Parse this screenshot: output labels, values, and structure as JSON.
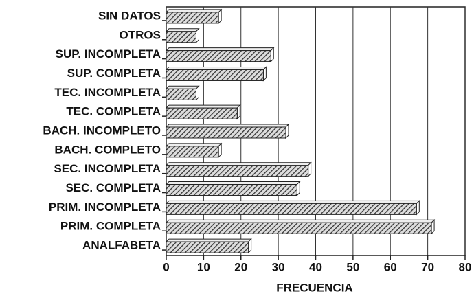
{
  "chart_data": {
    "type": "bar",
    "orientation": "horizontal",
    "xlabel": "FRECUENCIA",
    "categories": [
      "SIN DATOS",
      "OTROS",
      "SUP. INCOMPLETA",
      "SUP. COMPLETA",
      "TEC. INCOMPLETA",
      "TEC. COMPLETA",
      "BACH. INCOMPLETO",
      "BACH. COMPLETO",
      "SEC. INCOMPLETA",
      "SEC. COMPLETA",
      "PRIM. INCOMPLETA",
      "PRIM. COMPLETA",
      "ANALFABETA"
    ],
    "values": [
      14,
      8,
      28,
      26,
      8,
      19,
      32,
      14,
      38,
      35,
      67,
      71,
      22
    ],
    "color": "#333333",
    "xlim": [
      0,
      80
    ],
    "xticks": [
      0,
      10,
      20,
      30,
      40,
      50,
      60,
      70,
      80
    ],
    "grid": true
  }
}
